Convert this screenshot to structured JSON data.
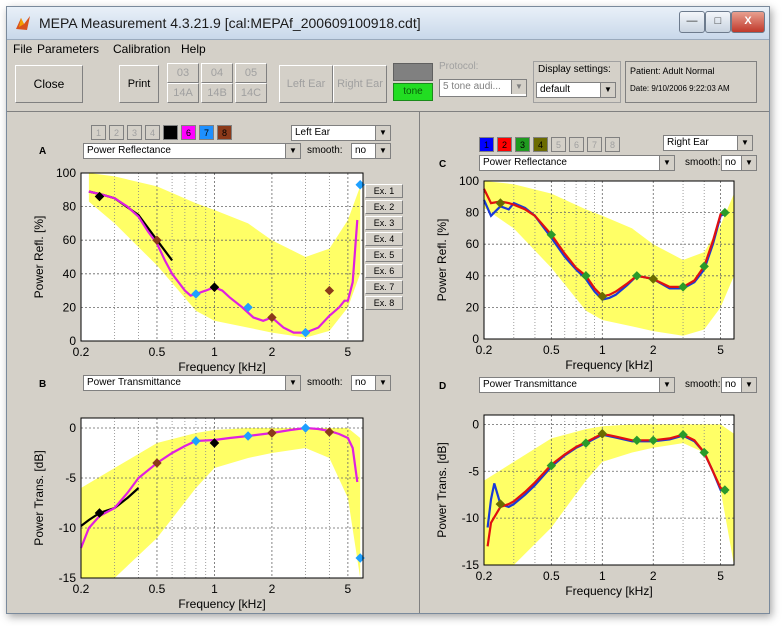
{
  "window": {
    "title": "MEPA Measurement  4.3.21.9  [cal:MEPAf_200609100918.cdt]",
    "minimize_label": "—",
    "maximize_label": "□",
    "close_label": "X"
  },
  "menu": [
    "File",
    "Parameters",
    "Calibration",
    "Help"
  ],
  "toolbar": {
    "close_label": "Close",
    "print_label": "Print",
    "tabs_top": [
      "03",
      "04",
      "05"
    ],
    "tabs_bottom": [
      "14A",
      "14B",
      "14C"
    ],
    "left_ear_label": "Left Ear",
    "right_ear_label": "Right Ear",
    "tone_label": "tone",
    "protocol_label": "Protocol:",
    "protocol_value": "5 tone audi...",
    "display_settings_label": "Display settings:",
    "display_settings_value": "default",
    "patient_text": "Patient: Adult  Normal",
    "date_text": "Date: 9/10/2006 9:22:03 AM"
  },
  "left": {
    "swatches": [
      {
        "label": "1",
        "color": "#d4d0c8",
        "text_color": "#a0a0a0"
      },
      {
        "label": "2",
        "color": "#d4d0c8",
        "text_color": "#a0a0a0"
      },
      {
        "label": "3",
        "color": "#d4d0c8",
        "text_color": "#a0a0a0"
      },
      {
        "label": "4",
        "color": "#d4d0c8",
        "text_color": "#a0a0a0"
      },
      {
        "label": "5",
        "color": "#000000",
        "text_color": "#000000"
      },
      {
        "label": "6",
        "color": "#ff00ff",
        "text_color": "#000000"
      },
      {
        "label": "7",
        "color": "#1e90ff",
        "text_color": "#000000"
      },
      {
        "label": "8",
        "color": "#8b3a1a",
        "text_color": "#000000"
      }
    ],
    "ear_select": "Left Ear",
    "examples": [
      "Ex. 1",
      "Ex. 2",
      "Ex. 3",
      "Ex. 4",
      "Ex. 5",
      "Ex. 6",
      "Ex. 7",
      "Ex. 8"
    ]
  },
  "right": {
    "swatches": [
      {
        "label": "1",
        "color": "#0000ff",
        "text_color": "#000000"
      },
      {
        "label": "2",
        "color": "#ff0000",
        "text_color": "#000000"
      },
      {
        "label": "3",
        "color": "#1f9a1f",
        "text_color": "#000000"
      },
      {
        "label": "4",
        "color": "#6b6b00",
        "text_color": "#000000"
      },
      {
        "label": "5",
        "color": "#d4d0c8",
        "text_color": "#a0a0a0"
      },
      {
        "label": "6",
        "color": "#d4d0c8",
        "text_color": "#a0a0a0"
      },
      {
        "label": "7",
        "color": "#d4d0c8",
        "text_color": "#a0a0a0"
      },
      {
        "label": "8",
        "color": "#d4d0c8",
        "text_color": "#a0a0a0"
      }
    ],
    "ear_select": "Right Ear"
  },
  "smooth_label": "smooth:",
  "smooth_value": "no",
  "colors": {
    "norm_band": "#ffff66",
    "left_magenta": "#e020e0",
    "left_black": "#000000",
    "left_brown": "#8b3a1a",
    "left_cyan": "#1ea0ff",
    "right_blue": "#1a3ad8",
    "right_red": "#e01010",
    "right_green": "#2a9a2a",
    "right_olive": "#6b6b00"
  },
  "chart_data": [
    {
      "id": "A",
      "type": "line",
      "title": "Power Reflectance",
      "xlabel": "Frequency [kHz]",
      "ylabel": "Power Refl. [%]",
      "xscale": "log",
      "xlim": [
        0.2,
        6
      ],
      "ylim": [
        0,
        100
      ],
      "xticks": [
        0.2,
        0.5,
        1,
        2,
        5
      ],
      "xticklabels": [
        "0.2",
        "0.5",
        "1",
        "2",
        "5"
      ],
      "yticks": [
        0,
        20,
        40,
        60,
        80,
        100
      ],
      "yticklabels": [
        "0",
        "20",
        "40",
        "60",
        "80",
        "100"
      ],
      "band": {
        "x": [
          0.22,
          0.3,
          0.5,
          0.8,
          1.0,
          1.5,
          2.0,
          3.0,
          4.0,
          5.0,
          5.8
        ],
        "low": [
          83,
          70,
          45,
          18,
          12,
          8,
          5,
          2,
          6,
          20,
          40
        ],
        "high": [
          100,
          98,
          92,
          82,
          78,
          70,
          60,
          50,
          55,
          72,
          92
        ]
      },
      "series": [
        {
          "color": "#000000",
          "x": [
            0.22,
            0.26,
            0.3,
            0.4,
            0.5,
            0.6
          ],
          "y": [
            89,
            87,
            85,
            75,
            60,
            48
          ]
        },
        {
          "color": "#e020e0",
          "x": [
            0.22,
            0.26,
            0.3,
            0.35,
            0.4,
            0.45,
            0.5,
            0.55,
            0.6,
            0.7,
            0.75,
            0.8,
            0.9,
            1.0,
            1.1,
            1.2,
            1.4,
            1.6,
            1.8,
            2.0,
            2.3,
            2.6,
            3.0,
            3.5,
            4.0,
            4.5,
            4.8,
            5.0,
            5.3,
            5.6
          ],
          "y": [
            89,
            87,
            85,
            80,
            74,
            65,
            58,
            48,
            40,
            30,
            27,
            28,
            30,
            32,
            30,
            26,
            20,
            14,
            12,
            14,
            8,
            5,
            5,
            8,
            15,
            20,
            24,
            24,
            35,
            72
          ]
        }
      ],
      "markers": [
        {
          "color": "#8b3a1a",
          "x": [
            0.25,
            0.5,
            1.0,
            2.0,
            4.0
          ],
          "y": [
            86,
            60,
            32,
            14,
            30
          ]
        },
        {
          "color": "#000000",
          "x": [
            0.25,
            1.0
          ],
          "y": [
            86,
            32
          ]
        },
        {
          "color": "#1ea0ff",
          "x": [
            0.8,
            1.5,
            3.0,
            5.8
          ],
          "y": [
            28,
            20,
            5,
            93
          ]
        }
      ]
    },
    {
      "id": "B",
      "type": "line",
      "title": "Power Transmittance",
      "xlabel": "Frequency [kHz]",
      "ylabel": "Power Trans. [dB]",
      "xscale": "log",
      "xlim": [
        0.2,
        6
      ],
      "ylim": [
        -15,
        1
      ],
      "xticks": [
        0.2,
        0.5,
        1,
        2,
        5
      ],
      "xticklabels": [
        "0.2",
        "0.5",
        "1",
        "2",
        "5"
      ],
      "yticks": [
        -15,
        -10,
        -5,
        0
      ],
      "yticklabels": [
        "-15",
        "-10",
        "-5",
        "0"
      ],
      "band": {
        "x": [
          0.2,
          0.3,
          0.5,
          0.8,
          1.0,
          1.5,
          2.0,
          3.0,
          4.0,
          5.0,
          5.8
        ],
        "low": [
          -15,
          -15,
          -11,
          -6,
          -4,
          -3,
          -2.5,
          -2,
          -3,
          -7,
          -15
        ],
        "high": [
          -6,
          -4,
          -1.5,
          -0.5,
          -0.2,
          0,
          0,
          0,
          0,
          0,
          -1
        ]
      },
      "series": [
        {
          "color": "#000000",
          "x": [
            0.2,
            0.22,
            0.25,
            0.3,
            0.35,
            0.4
          ],
          "y": [
            -9.8,
            -9.2,
            -8.5,
            -8.0,
            -7.0,
            -6.0
          ]
        },
        {
          "color": "#e020e0",
          "x": [
            0.2,
            0.22,
            0.25,
            0.3,
            0.35,
            0.4,
            0.5,
            0.6,
            0.7,
            0.8,
            1.0,
            1.2,
            1.5,
            2.0,
            2.5,
            3.0,
            3.5,
            4.0,
            4.5,
            5.0,
            5.3,
            5.6
          ],
          "y": [
            -12,
            -10,
            -8.8,
            -8,
            -6.5,
            -5,
            -3.5,
            -2.5,
            -1.8,
            -1.3,
            -1.2,
            -1.0,
            -0.8,
            -0.5,
            -0.2,
            0,
            -0.1,
            -0.3,
            -0.6,
            -1.0,
            -2,
            -5.4
          ]
        }
      ],
      "markers": [
        {
          "color": "#8b3a1a",
          "x": [
            0.25,
            0.5,
            1.0,
            2.0,
            4.0
          ],
          "y": [
            -8.5,
            -3.5,
            -1.5,
            -0.5,
            -0.4
          ]
        },
        {
          "color": "#000000",
          "x": [
            0.25,
            1.0
          ],
          "y": [
            -8.5,
            -1.5
          ]
        },
        {
          "color": "#1ea0ff",
          "x": [
            0.8,
            1.5,
            3.0,
            5.8
          ],
          "y": [
            -1.3,
            -0.8,
            0,
            -13
          ]
        }
      ]
    },
    {
      "id": "C",
      "type": "line",
      "title": "Power Reflectance",
      "xlabel": "Frequency [kHz]",
      "ylabel": "Power Refl. [%]",
      "xscale": "log",
      "xlim": [
        0.2,
        6
      ],
      "ylim": [
        0,
        100
      ],
      "xticks": [
        0.2,
        0.5,
        1,
        2,
        5
      ],
      "xticklabels": [
        "0.2",
        "0.5",
        "1",
        "2",
        "5"
      ],
      "yticks": [
        0,
        20,
        40,
        60,
        80,
        100
      ],
      "yticklabels": [
        "0",
        "20",
        "40",
        "60",
        "80",
        "100"
      ],
      "band": {
        "x": [
          0.2,
          0.3,
          0.5,
          0.8,
          1.0,
          1.5,
          2.0,
          3.0,
          4.0,
          5.0,
          6.0
        ],
        "low": [
          83,
          70,
          45,
          18,
          12,
          8,
          5,
          2,
          6,
          20,
          40
        ],
        "high": [
          100,
          98,
          92,
          82,
          78,
          70,
          60,
          50,
          55,
          72,
          92
        ]
      },
      "series": [
        {
          "color": "#1a3ad8",
          "x": [
            0.2,
            0.22,
            0.25,
            0.28,
            0.3,
            0.35,
            0.4,
            0.5,
            0.6,
            0.7,
            0.8,
            0.9,
            1.0,
            1.1,
            1.2,
            1.4,
            1.6,
            1.8,
            2.0,
            2.5,
            3.0,
            3.5,
            4.0,
            4.5,
            5.0,
            5.5
          ],
          "y": [
            88,
            78,
            84,
            82,
            86,
            83,
            78,
            64,
            52,
            44,
            38,
            30,
            25,
            26,
            28,
            34,
            40,
            39,
            38,
            32,
            32,
            36,
            44,
            60,
            78,
            80
          ]
        },
        {
          "color": "#e01010",
          "x": [
            0.2,
            0.22,
            0.25,
            0.28,
            0.3,
            0.35,
            0.4,
            0.5,
            0.6,
            0.7,
            0.8,
            0.9,
            1.0,
            1.1,
            1.2,
            1.4,
            1.6,
            1.8,
            2.0,
            2.5,
            3.0,
            3.5,
            4.0,
            4.5,
            5.0,
            5.5
          ],
          "y": [
            95,
            86,
            87,
            86,
            85,
            82,
            78,
            66,
            54,
            45,
            40,
            32,
            27,
            28,
            30,
            35,
            40,
            39,
            38,
            33,
            33,
            37,
            46,
            62,
            79,
            81
          ]
        }
      ],
      "markers": [
        {
          "color": "#2a9a2a",
          "x": [
            0.25,
            0.5,
            0.8,
            1.0,
            1.6,
            2.0,
            3.0,
            4.0,
            5.3
          ],
          "y": [
            86,
            66,
            40,
            27,
            40,
            38,
            33,
            46,
            80
          ]
        },
        {
          "color": "#6b6b00",
          "x": [
            0.25,
            1.0,
            2.0
          ],
          "y": [
            86,
            27,
            38
          ]
        }
      ]
    },
    {
      "id": "D",
      "type": "line",
      "title": "Power Transmittance",
      "xlabel": "Frequency [kHz]",
      "ylabel": "Power Trans. [dB]",
      "xscale": "log",
      "xlim": [
        0.2,
        6
      ],
      "ylim": [
        -15,
        1
      ],
      "xticks": [
        0.2,
        0.5,
        1,
        2,
        5
      ],
      "xticklabels": [
        "0.2",
        "0.5",
        "1",
        "2",
        "5"
      ],
      "yticks": [
        -15,
        -10,
        -5,
        0
      ],
      "yticklabels": [
        "-15",
        "-10",
        "-5",
        "0"
      ],
      "band": {
        "x": [
          0.2,
          0.3,
          0.5,
          0.8,
          1.0,
          1.5,
          2.0,
          3.0,
          4.0,
          5.0,
          6.0
        ],
        "low": [
          -15,
          -15,
          -11,
          -6,
          -4,
          -3,
          -2.5,
          -2,
          -3,
          -7,
          -15
        ],
        "high": [
          -6,
          -4,
          -1.5,
          -0.5,
          -0.2,
          0,
          0,
          0,
          0,
          0,
          -1
        ]
      },
      "series": [
        {
          "color": "#1a3ad8",
          "x": [
            0.21,
            0.22,
            0.23,
            0.25,
            0.28,
            0.3,
            0.35,
            0.4,
            0.5,
            0.6,
            0.7,
            0.8,
            1.0,
            1.2,
            1.5,
            2.0,
            2.5,
            3.0,
            3.5,
            4.0,
            4.5,
            5.0,
            5.5
          ],
          "y": [
            -11,
            -8,
            -6.3,
            -8.5,
            -8.8,
            -8.5,
            -7.5,
            -6.5,
            -4.5,
            -3.3,
            -2.5,
            -2.0,
            -1.1,
            -1.4,
            -1.8,
            -1.8,
            -1.6,
            -1.2,
            -1.8,
            -3.0,
            -5.0,
            -7.0,
            -7.2
          ]
        },
        {
          "color": "#e01010",
          "x": [
            0.21,
            0.22,
            0.25,
            0.28,
            0.3,
            0.35,
            0.4,
            0.5,
            0.6,
            0.7,
            0.8,
            1.0,
            1.2,
            1.5,
            2.0,
            2.5,
            3.0,
            3.5,
            4.0,
            4.5,
            5.0,
            5.5
          ],
          "y": [
            -13,
            -10.5,
            -8.8,
            -8.5,
            -8.2,
            -7.2,
            -6.2,
            -4.3,
            -3.2,
            -2.4,
            -1.9,
            -1.0,
            -1.3,
            -1.7,
            -1.7,
            -1.5,
            -1.1,
            -1.7,
            -3.0,
            -5.0,
            -6.8,
            -7.0
          ]
        }
      ],
      "markers": [
        {
          "color": "#2a9a2a",
          "x": [
            0.25,
            0.5,
            0.8,
            1.0,
            1.6,
            2.0,
            3.0,
            4.0,
            5.3
          ],
          "y": [
            -8.5,
            -4.4,
            -2.0,
            -1.0,
            -1.7,
            -1.7,
            -1.1,
            -3.0,
            -7.0
          ]
        },
        {
          "color": "#6b6b00",
          "x": [
            0.25,
            1.0
          ],
          "y": [
            -8.5,
            -1.0
          ]
        }
      ]
    }
  ]
}
